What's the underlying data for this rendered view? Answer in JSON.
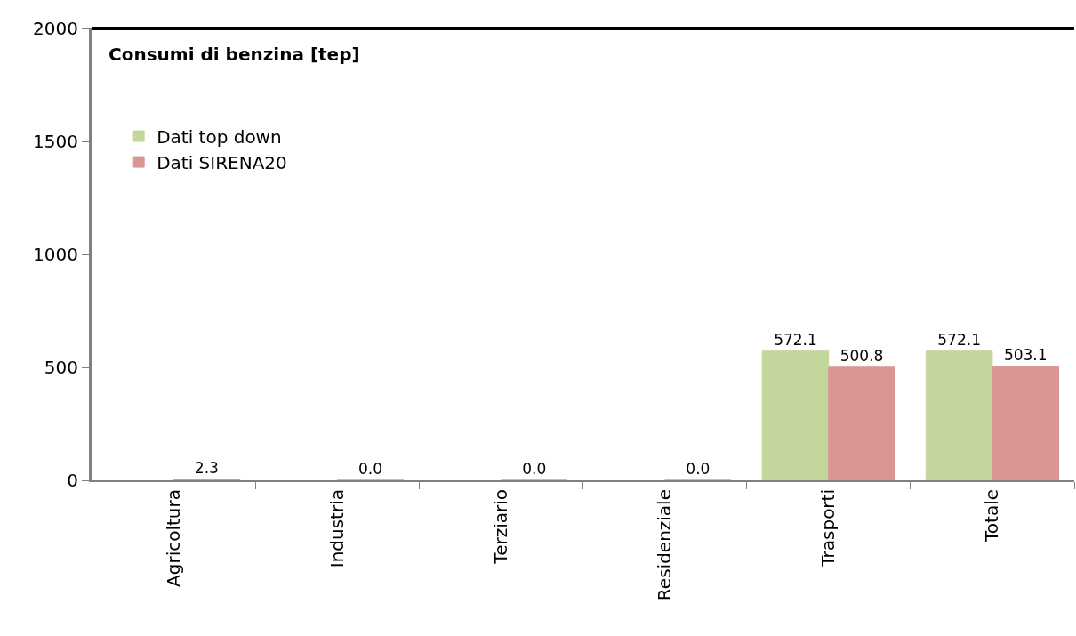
{
  "chart_data": {
    "type": "bar",
    "title": "Consumi di benzina [tep]",
    "categories": [
      "Agricoltura",
      "Industria",
      "Terziario",
      "Residenziale",
      "Trasporti",
      "Totale"
    ],
    "series": [
      {
        "name": "Dati top down",
        "color": "#c3d69b",
        "values": [
          null,
          null,
          null,
          null,
          572.1,
          572.1
        ],
        "value_labels": [
          null,
          null,
          null,
          null,
          "572.1",
          "572.1"
        ]
      },
      {
        "name": "Dati SIRENA20",
        "color": "#d99694",
        "values": [
          2.3,
          0.0,
          0.0,
          0.0,
          500.8,
          503.1
        ],
        "value_labels": [
          "2.3",
          "0.0",
          "0.0",
          "0.0",
          "500.8",
          "503.1"
        ]
      }
    ],
    "ylim": [
      0,
      2000
    ],
    "yticks": [
      0,
      500,
      1000,
      1500,
      2000
    ],
    "legend": "top left"
  }
}
